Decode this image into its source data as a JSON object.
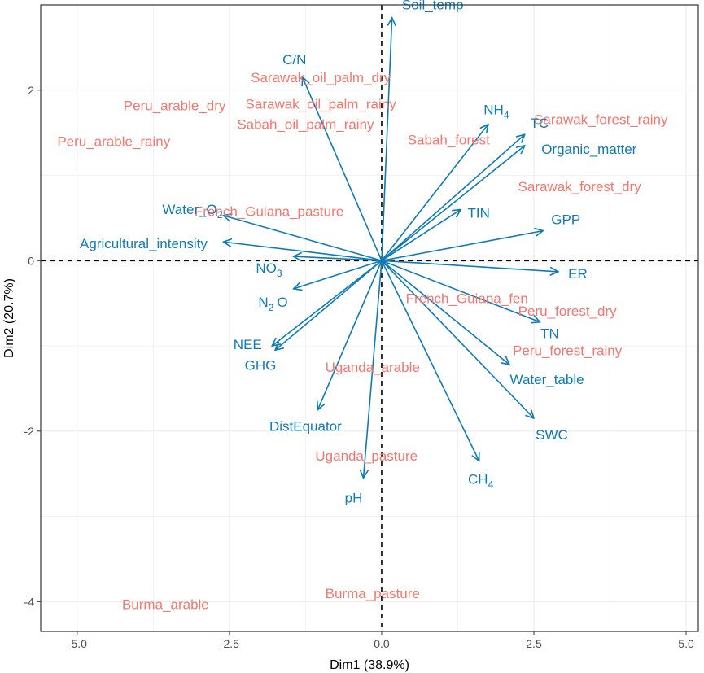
{
  "chart_data": {
    "type": "scatter",
    "subtype": "pca-biplot",
    "title": "",
    "xlabel": "Dim1 (38.9%)",
    "ylabel": "Dim2 (20.7%)",
    "xlim": [
      -5.6,
      5.2
    ],
    "ylim": [
      -4.35,
      3.0
    ],
    "xticks": [
      -5.0,
      -2.5,
      0.0,
      2.5,
      5.0
    ],
    "xtick_labels": [
      "-5.0",
      "-2.5",
      "0.0",
      "2.5",
      "5.0"
    ],
    "yticks": [
      -4,
      -2,
      0,
      2
    ],
    "ytick_labels": [
      "-4",
      "-2",
      "0",
      "2"
    ],
    "grid": true,
    "reference_lines": [
      {
        "axis": "x",
        "value": 0,
        "style": "dashed"
      },
      {
        "axis": "y",
        "value": 0,
        "style": "dashed"
      }
    ],
    "colors": {
      "sites": "#F8766D",
      "variables": "#0E7BB5",
      "grid": "#EBEBEB",
      "axis": "#333333"
    },
    "sites": [
      {
        "name": "Peru_arable_dry",
        "x": -3.4,
        "y": 1.82
      },
      {
        "name": "Peru_arable_rainy",
        "x": -4.4,
        "y": 1.4
      },
      {
        "name": "Sarawak_oil_palm_dry",
        "x": -1.0,
        "y": 2.15
      },
      {
        "name": "Sarawak_oil_palm_rainy",
        "x": -1.0,
        "y": 1.84
      },
      {
        "name": "Sabah_oil_palm_rainy",
        "x": -1.25,
        "y": 1.6
      },
      {
        "name": "Sarawak_forest_rainy",
        "x": 3.6,
        "y": 1.66
      },
      {
        "name": "Sabah_forest",
        "x": 1.1,
        "y": 1.42
      },
      {
        "name": "Sarawak_forest_dry",
        "x": 3.25,
        "y": 0.87
      },
      {
        "name": "French_Guiana_pasture",
        "x": -1.85,
        "y": 0.58
      },
      {
        "name": "French_Guiana_fen",
        "x": 1.4,
        "y": -0.44
      },
      {
        "name": "Peru_forest_dry",
        "x": 3.05,
        "y": -0.59
      },
      {
        "name": "Peru_forest_rainy",
        "x": 3.05,
        "y": -1.05
      },
      {
        "name": "Uganda_arable",
        "x": -0.15,
        "y": -1.25
      },
      {
        "name": "Uganda_pasture",
        "x": -0.25,
        "y": -2.29
      },
      {
        "name": "Burma_arable",
        "x": -3.55,
        "y": -4.03
      },
      {
        "name": "Burma_pasture",
        "x": -0.15,
        "y": -3.9
      }
    ],
    "variables": [
      {
        "name": "Soil_temp",
        "x": 0.17,
        "y": 2.85
      },
      {
        "name": "C/N",
        "x": -1.3,
        "y": 2.15
      },
      {
        "name": "NH4",
        "x": 1.75,
        "y": 1.6
      },
      {
        "name": "TC",
        "x": 2.35,
        "y": 1.48
      },
      {
        "name": "Organic_matter",
        "x": 2.35,
        "y": 1.35
      },
      {
        "name": "TIN",
        "x": 1.3,
        "y": 0.6
      },
      {
        "name": "GPP",
        "x": 2.65,
        "y": 0.35
      },
      {
        "name": "Water_O2",
        "x": -2.6,
        "y": 0.53
      },
      {
        "name": "Agricultural_intensity",
        "x": -2.6,
        "y": 0.22
      },
      {
        "name": "NO3",
        "x": -1.45,
        "y": 0.05
      },
      {
        "name": "ER",
        "x": 2.9,
        "y": -0.13
      },
      {
        "name": "N2O",
        "x": -1.45,
        "y": -0.33
      },
      {
        "name": "TN",
        "x": 2.6,
        "y": -0.72
      },
      {
        "name": "NEE",
        "x": -1.8,
        "y": -1.0
      },
      {
        "name": "GHG",
        "x": -1.75,
        "y": -1.05
      },
      {
        "name": "Water_table",
        "x": 2.1,
        "y": -1.22
      },
      {
        "name": "DistEquator",
        "x": -1.05,
        "y": -1.75
      },
      {
        "name": "SWC",
        "x": 2.5,
        "y": -1.85
      },
      {
        "name": "CH4",
        "x": 1.6,
        "y": -2.35
      },
      {
        "name": "pH",
        "x": -0.3,
        "y": -2.55
      }
    ]
  }
}
